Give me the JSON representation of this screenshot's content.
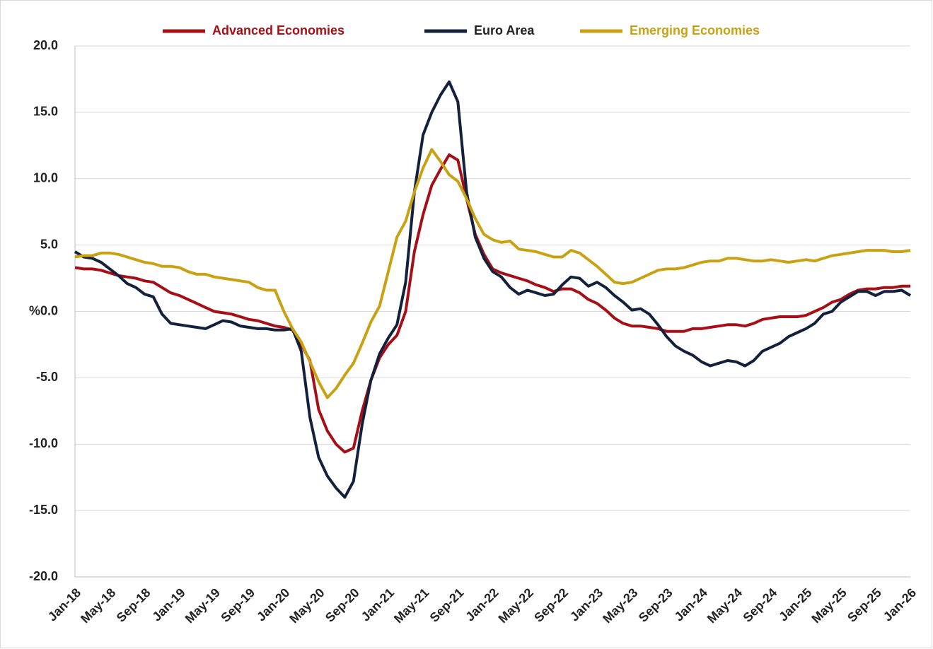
{
  "chart_data": {
    "type": "line",
    "categories": [
      "Jan-18",
      null,
      null,
      null,
      "May-18",
      null,
      null,
      null,
      "Sep-18",
      null,
      null,
      null,
      "Jan-19",
      null,
      null,
      null,
      "May-19",
      null,
      null,
      null,
      "Sep-19",
      null,
      null,
      null,
      "Jan-20",
      null,
      null,
      null,
      "May-20",
      null,
      null,
      null,
      "Sep-20",
      null,
      null,
      null,
      "Jan-21",
      null,
      null,
      null,
      "May-21",
      null,
      null,
      null,
      "Sep-21",
      null,
      null,
      null,
      "Jan-22",
      null,
      null,
      null,
      "May-22",
      null,
      null,
      null,
      "Sep-22",
      null,
      null,
      null,
      "Jan-23",
      null,
      null,
      null,
      "May-23",
      null,
      null,
      null,
      "Sep-23",
      null,
      null,
      null,
      "Jan-24",
      null,
      null,
      null,
      "May-24",
      null,
      null,
      null,
      "Sep-24",
      null,
      null,
      null,
      "Jan-25",
      null,
      null,
      null,
      "May-25",
      null,
      null,
      null,
      "Sep-25",
      null,
      null,
      null,
      "Jan-26"
    ],
    "series": [
      {
        "name": "Advanced Economies",
        "color": "#a50f15",
        "values": [
          3.3,
          3.2,
          3.2,
          3.1,
          2.9,
          2.7,
          2.6,
          2.5,
          2.3,
          2.2,
          1.8,
          1.4,
          1.2,
          0.9,
          0.6,
          0.3,
          0.0,
          -0.1,
          -0.2,
          -0.4,
          -0.6,
          -0.7,
          -0.9,
          -1.1,
          -1.2,
          -1.4,
          -2.5,
          -3.7,
          -7.4,
          -9.0,
          -10.0,
          -10.6,
          -10.3,
          -7.5,
          -5.2,
          -3.5,
          -2.5,
          -1.8,
          0.0,
          4.5,
          7.3,
          9.5,
          10.7,
          11.8,
          11.4,
          8.5,
          5.8,
          4.3,
          3.2,
          2.9,
          2.7,
          2.5,
          2.3,
          2.0,
          1.8,
          1.5,
          1.7,
          1.7,
          1.4,
          0.9,
          0.6,
          0.1,
          -0.5,
          -0.9,
          -1.1,
          -1.1,
          -1.2,
          -1.3,
          -1.5,
          -1.5,
          -1.5,
          -1.3,
          -1.3,
          -1.2,
          -1.1,
          -1.0,
          -1.0,
          -1.1,
          -0.9,
          -0.6,
          -0.5,
          -0.4,
          -0.4,
          -0.4,
          -0.3,
          0.0,
          0.3,
          0.7,
          0.9,
          1.3,
          1.6,
          1.7,
          1.7,
          1.8,
          1.8,
          1.9,
          1.9
        ]
      },
      {
        "name": "Euro Area",
        "color": "#14213d",
        "values": [
          4.5,
          4.1,
          4.0,
          3.7,
          3.2,
          2.7,
          2.1,
          1.8,
          1.3,
          1.1,
          -0.2,
          -0.9,
          -1.0,
          -1.1,
          -1.2,
          -1.3,
          -1.0,
          -0.7,
          -0.8,
          -1.1,
          -1.2,
          -1.3,
          -1.3,
          -1.4,
          -1.4,
          -1.3,
          -3.0,
          -8.0,
          -11.0,
          -12.4,
          -13.3,
          -14.0,
          -12.8,
          -8.5,
          -5.2,
          -3.2,
          -2.0,
          -1.0,
          2.2,
          9.0,
          13.3,
          15.0,
          16.3,
          17.3,
          15.8,
          9.0,
          5.6,
          4.0,
          3.0,
          2.6,
          1.8,
          1.3,
          1.6,
          1.4,
          1.2,
          1.3,
          2.0,
          2.6,
          2.5,
          1.9,
          2.2,
          1.8,
          1.2,
          0.7,
          0.1,
          0.2,
          -0.2,
          -1.0,
          -1.9,
          -2.6,
          -3.0,
          -3.3,
          -3.8,
          -4.1,
          -3.9,
          -3.7,
          -3.8,
          -4.1,
          -3.7,
          -3.0,
          -2.7,
          -2.4,
          -1.9,
          -1.6,
          -1.3,
          -0.9,
          -0.2,
          0.0,
          0.7,
          1.1,
          1.5,
          1.5,
          1.2,
          1.5,
          1.5,
          1.6,
          1.2
        ]
      },
      {
        "name": "Emerging Economies",
        "color": "#c9a214",
        "values": [
          4.1,
          4.2,
          4.2,
          4.4,
          4.4,
          4.3,
          4.1,
          3.9,
          3.7,
          3.6,
          3.4,
          3.4,
          3.3,
          3.0,
          2.8,
          2.8,
          2.6,
          2.5,
          2.4,
          2.3,
          2.2,
          1.8,
          1.6,
          1.6,
          0.0,
          -1.3,
          -2.3,
          -3.8,
          -5.3,
          -6.5,
          -5.8,
          -4.8,
          -3.9,
          -2.4,
          -0.8,
          0.4,
          3.0,
          5.6,
          6.8,
          9.0,
          10.8,
          12.2,
          11.3,
          10.3,
          9.8,
          8.5,
          7.0,
          5.8,
          5.4,
          5.2,
          5.3,
          4.7,
          4.6,
          4.5,
          4.3,
          4.1,
          4.1,
          4.6,
          4.4,
          3.9,
          3.4,
          2.8,
          2.2,
          2.1,
          2.2,
          2.5,
          2.8,
          3.1,
          3.2,
          3.2,
          3.3,
          3.5,
          3.7,
          3.8,
          3.8,
          4.0,
          4.0,
          3.9,
          3.8,
          3.8,
          3.9,
          3.8,
          3.7,
          3.8,
          3.9,
          3.8,
          4.0,
          4.2,
          4.3,
          4.4,
          4.5,
          4.6,
          4.6,
          4.6,
          4.5,
          4.5,
          4.6
        ]
      }
    ],
    "ylim": [
      -20,
      20
    ],
    "yticks": [
      {
        "value": -20,
        "label": "-20.0"
      },
      {
        "value": -15,
        "label": "-15.0"
      },
      {
        "value": -10,
        "label": "-10.0"
      },
      {
        "value": -5,
        "label": "-5.0"
      },
      {
        "value": 0,
        "label": "%0.0"
      },
      {
        "value": 5,
        "label": "5.0"
      },
      {
        "value": 10,
        "label": "10.0"
      },
      {
        "value": 15,
        "label": "15.0"
      },
      {
        "value": 20,
        "label": "20.0"
      }
    ],
    "grid": true,
    "legend": "top"
  }
}
